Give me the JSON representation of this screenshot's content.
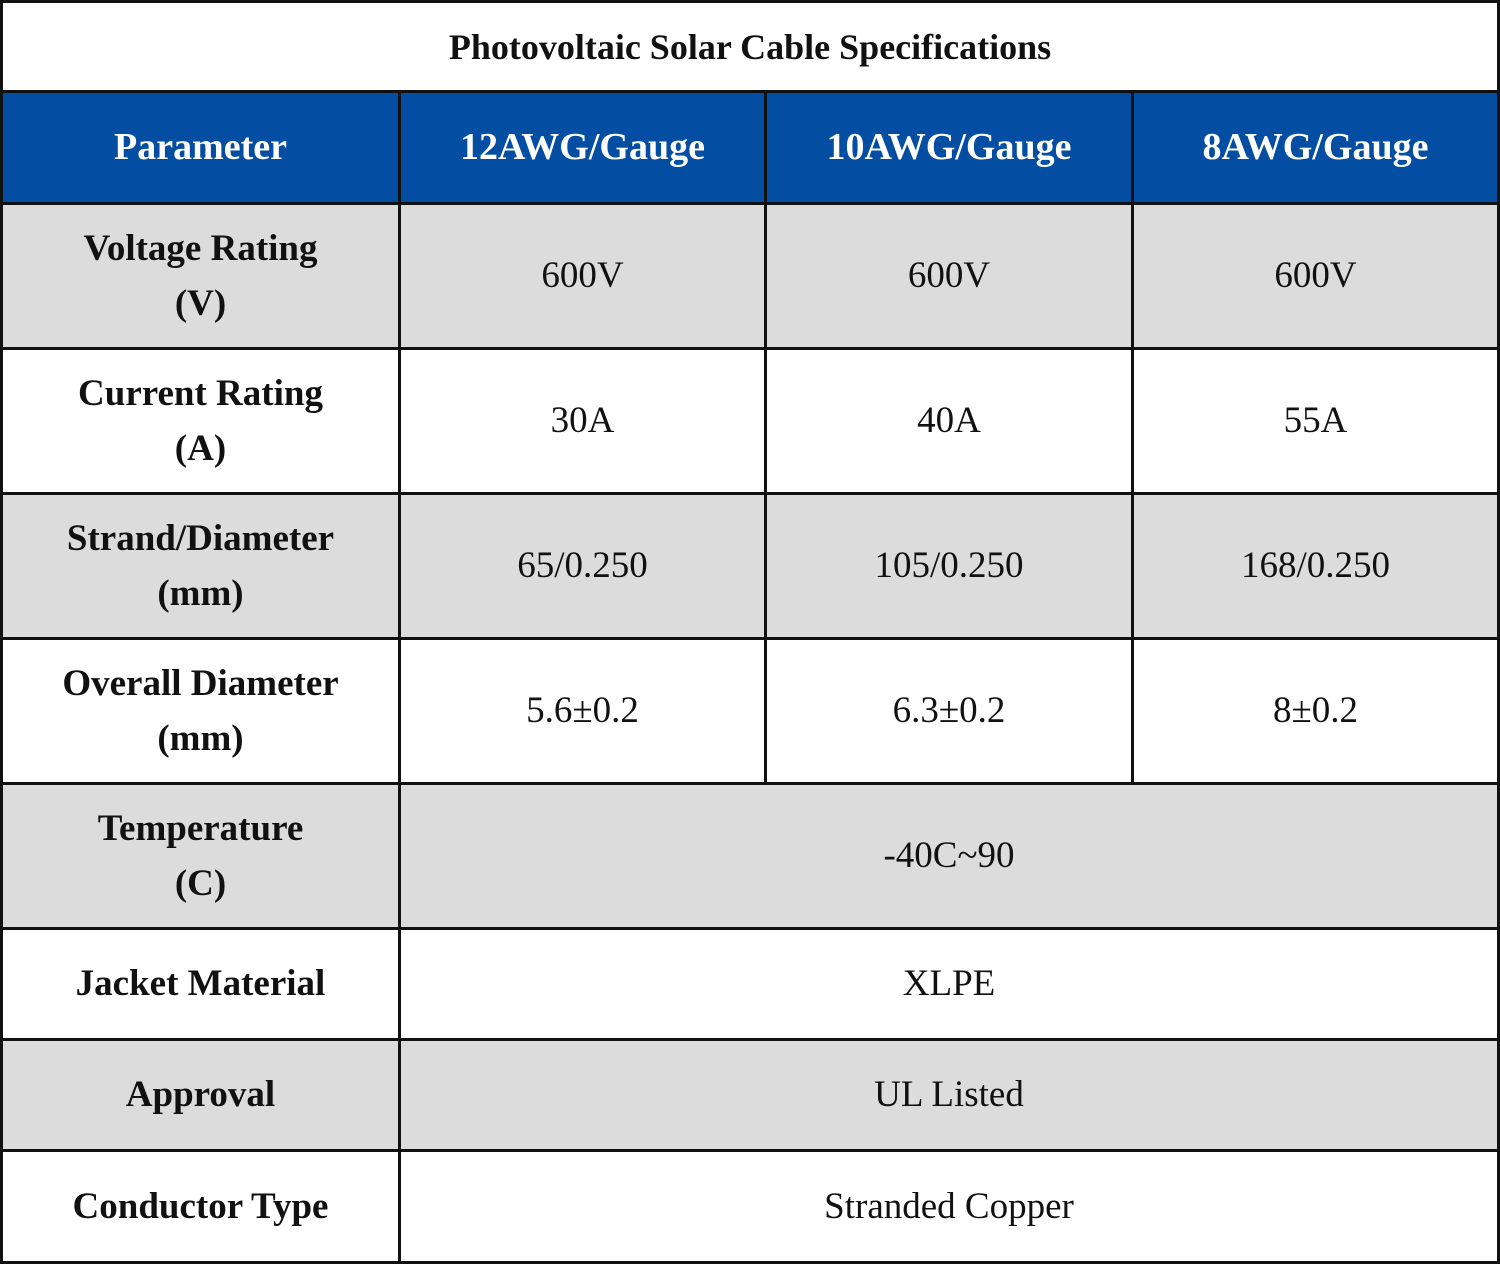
{
  "title": "Photovoltaic Solar Cable Specifications",
  "table": {
    "header": [
      "Parameter",
      "12AWG/Gauge",
      "10AWG/Gauge",
      "8AWG/Gauge"
    ],
    "rows": [
      {
        "label": "Voltage Rating\n(V)",
        "values": [
          "600V",
          "600V",
          "600V"
        ]
      },
      {
        "label": "Current Rating\n(A)",
        "values": [
          "30A",
          "40A",
          "55A"
        ]
      },
      {
        "label": "Strand/Diameter\n(mm)",
        "values": [
          "65/0.250",
          "105/0.250",
          "168/0.250"
        ]
      },
      {
        "label": "Overall Diameter\n(mm)",
        "values": [
          "5.6±0.2",
          "6.3±0.2",
          "8±0.2"
        ]
      },
      {
        "label": "Temperature\n(C)",
        "values": [
          "-40C~90"
        ]
      },
      {
        "label": "Jacket Material",
        "values": [
          "XLPE"
        ]
      },
      {
        "label": "Approval",
        "values": [
          "UL Listed"
        ]
      },
      {
        "label": "Conductor Type",
        "values": [
          "Stranded Copper"
        ]
      }
    ]
  }
}
